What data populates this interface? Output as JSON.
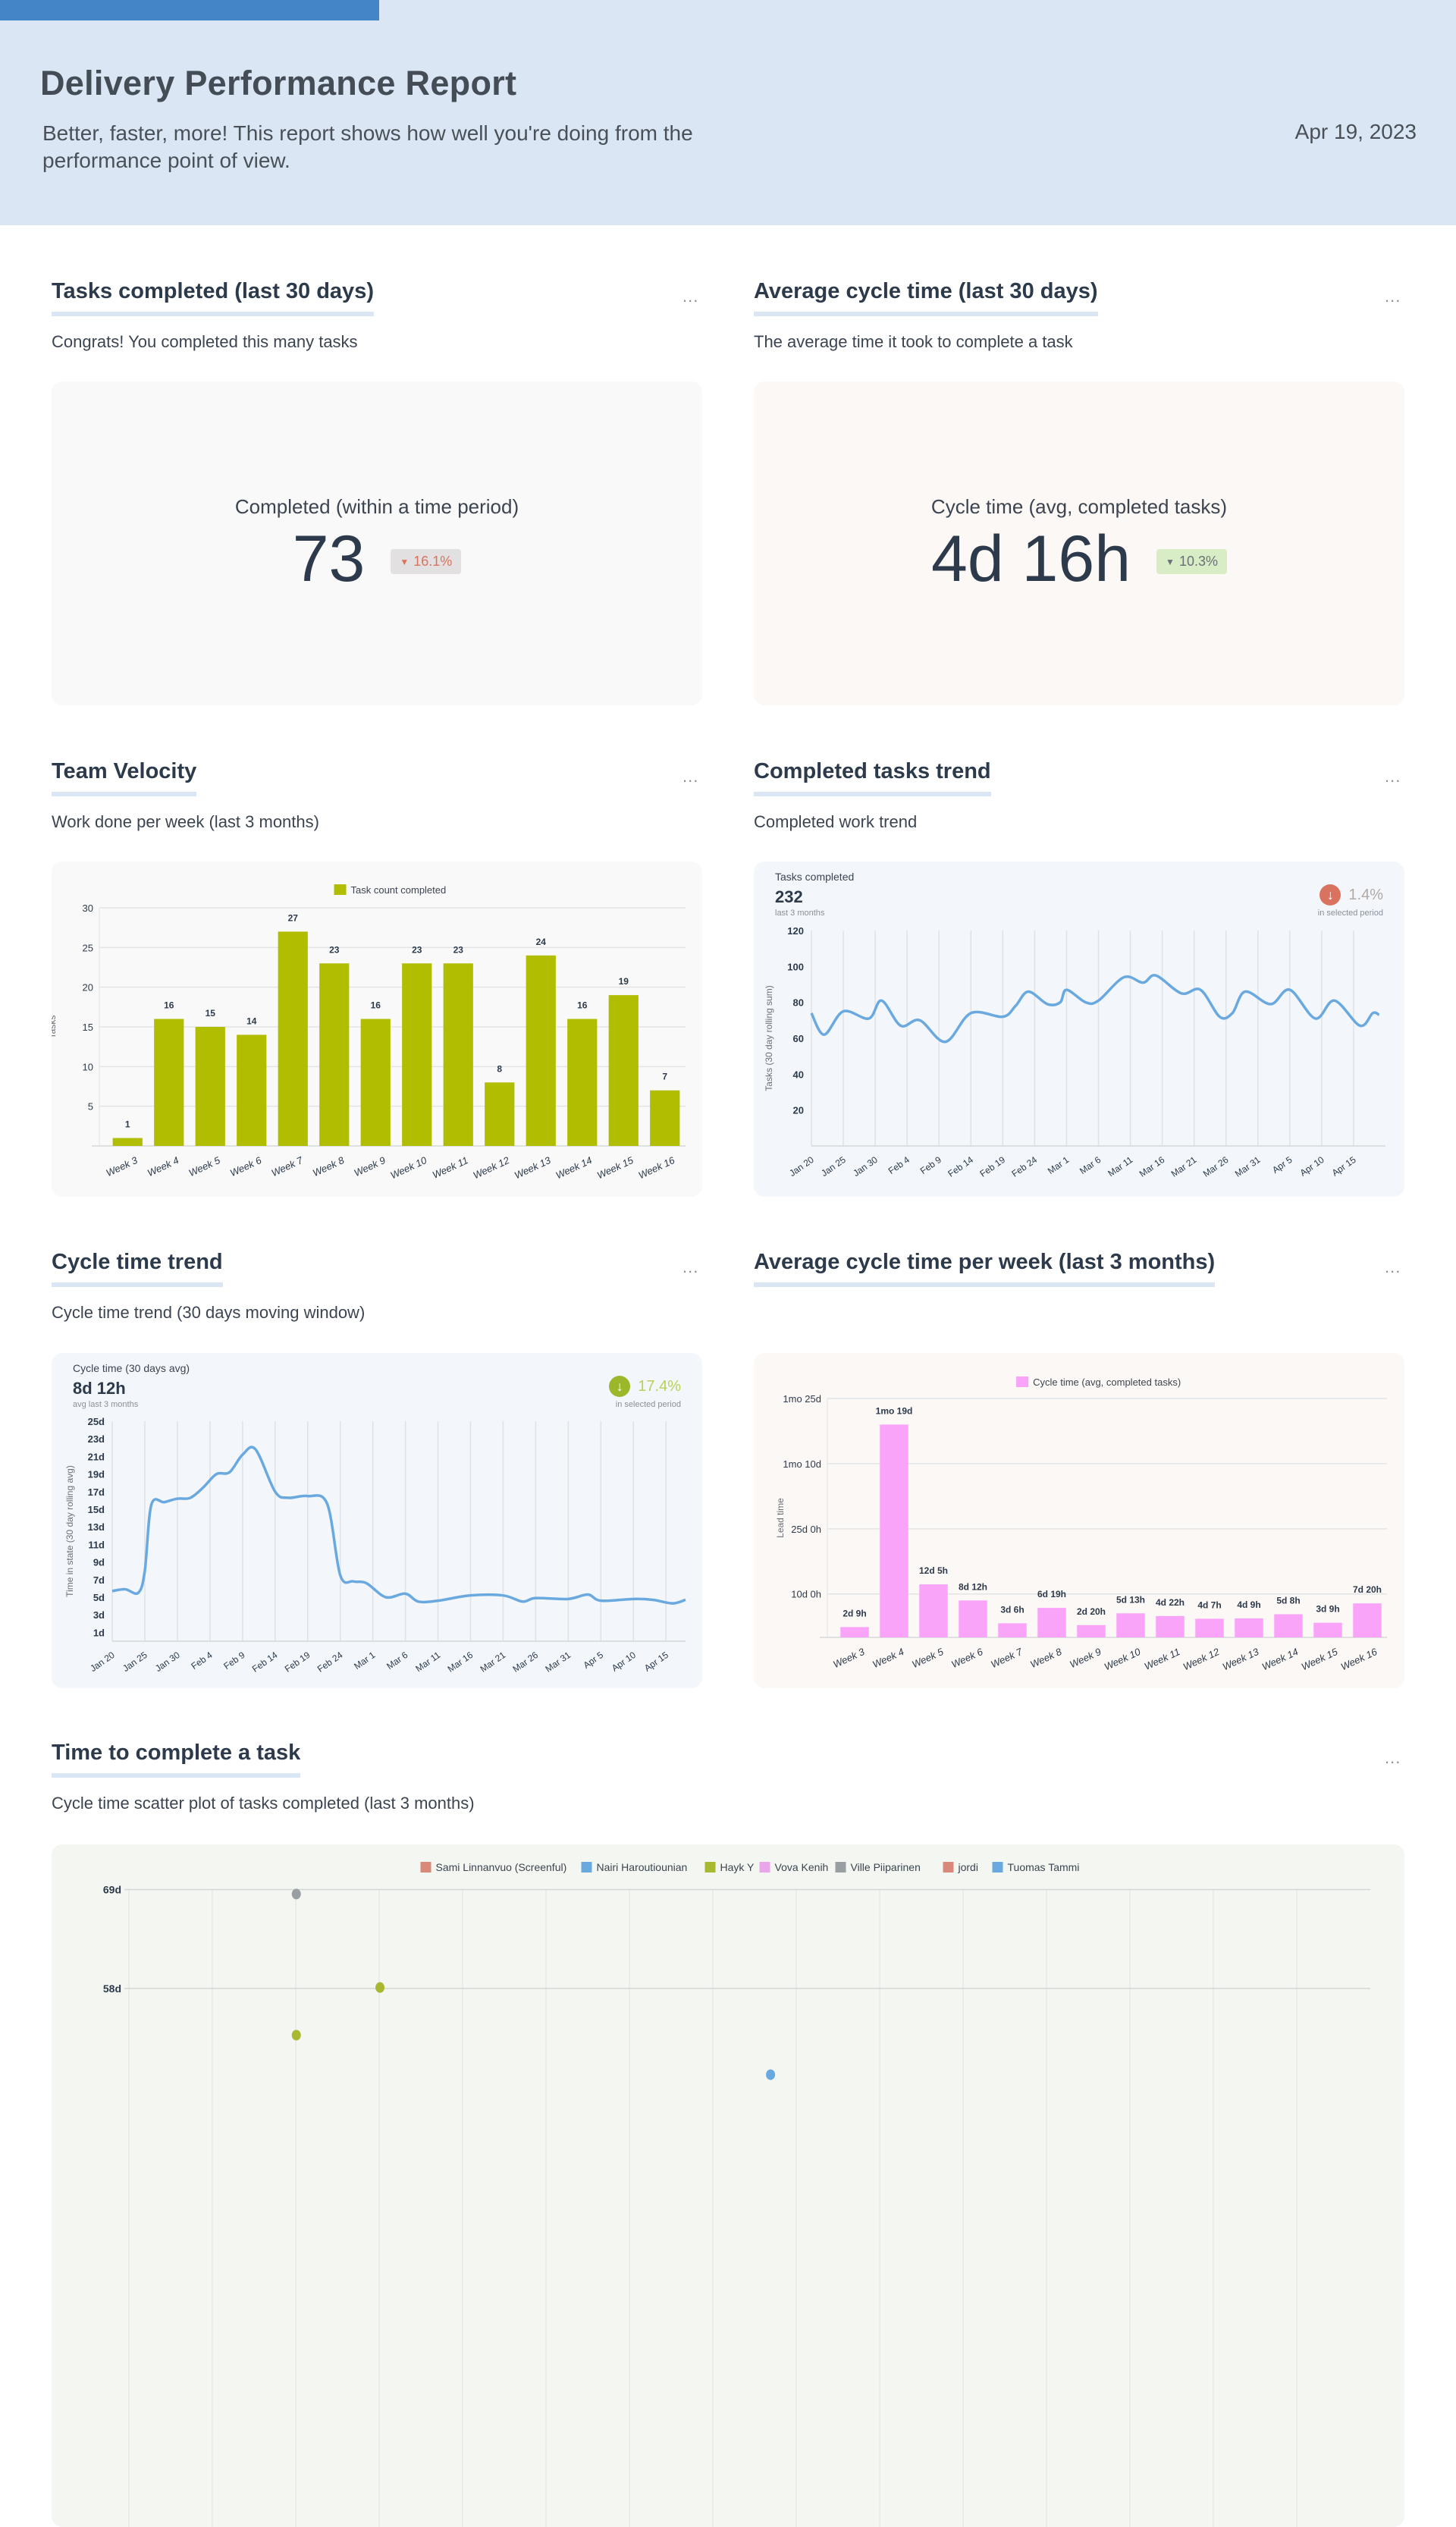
{
  "header": {
    "title": "Delivery Performance Report",
    "subtitle": "Better, faster, more! This report shows how well you're doing from the performance point of view.",
    "date": "Apr 19, 2023"
  },
  "menu_label": "...",
  "sections": [
    {
      "title": "Tasks completed (last 30 days)",
      "subtitle": "Congrats! You completed this many tasks"
    },
    {
      "title": "Average cycle time (last 30 days)",
      "subtitle": "The average time it took to complete a task"
    },
    {
      "title": "Team Velocity",
      "subtitle": "Work done per week (last 3 months)"
    },
    {
      "title": "Completed tasks trend",
      "subtitle": "Completed work trend"
    },
    {
      "title": "Cycle time trend",
      "subtitle": "Cycle time trend (30 days moving window)"
    },
    {
      "title": "Average cycle time per week (last 3 months)",
      "subtitle": ""
    },
    {
      "title": "Time to complete a task",
      "subtitle": "Cycle time scatter plot of tasks completed (last 3 months)"
    }
  ],
  "kpis": {
    "tasks": {
      "label": "Completed (within a time period)",
      "value": "73",
      "change": "16.1%",
      "direction": "down",
      "arrow": "▼",
      "color": "#d9735f",
      "badge_bg": "#e2e0e0"
    },
    "cycle": {
      "label": "Cycle time (avg, completed tasks)",
      "value": "4d 16h",
      "change": "10.3%",
      "direction": "down",
      "arrow": "▼",
      "color": "#6b7076",
      "badge_bg": "#d8ecc6"
    }
  },
  "colors": {
    "header_bg": "#dae6f3",
    "accent": "#4485c8",
    "velocity_bar": "#b0bd00",
    "cycle_bar": "#f9a3f9",
    "line": "#6aa9e0",
    "down_bad": "#d9735f",
    "down_good": "#9bb82a"
  },
  "chart_data": [
    {
      "type": "bar",
      "legend": "Task count completed",
      "legend_position": "top",
      "color": "#b0bd00",
      "categories": [
        "Week 3",
        "Week 4",
        "Week 5",
        "Week 6",
        "Week 7",
        "Week 8",
        "Week 9",
        "Week 10",
        "Week 11",
        "Week 12",
        "Week 13",
        "Week 14",
        "Week 15",
        "Week 16"
      ],
      "values": [
        1,
        16,
        15,
        14,
        27,
        23,
        16,
        23,
        23,
        8,
        24,
        16,
        19,
        7
      ],
      "value_labels": [
        "1",
        "16",
        "15",
        "14",
        "27",
        "23",
        "16",
        "23",
        "23",
        "8",
        "24",
        "16",
        "19",
        "7"
      ],
      "ylabel": "Tasks",
      "ylim": [
        0,
        30
      ],
      "yticks": [
        5,
        10,
        15,
        20,
        25,
        30
      ],
      "ytick_labels": [
        "5",
        "10",
        "15",
        "20",
        "25",
        "30"
      ],
      "grid": true
    },
    {
      "type": "line",
      "header": {
        "label": "Tasks completed",
        "value": "232",
        "note": "last 3 months",
        "change": "1.4%",
        "change_note": "in selected period",
        "direction": "down",
        "arrow_color": "#d9735f"
      },
      "color": "#6aa9e0",
      "x": [
        "Jan 20",
        "Jan 22",
        "Jan 25",
        "Jan 29",
        "Jan 31",
        "Feb 3",
        "Feb 6",
        "Feb 10",
        "Feb 14",
        "Feb 19",
        "Feb 21",
        "Feb 23",
        "Feb 26",
        "Feb 28",
        "Mar 1",
        "Mar 4",
        "Mar 6",
        "Mar 10",
        "Mar 13",
        "Mar 15",
        "Mar 19",
        "Mar 22",
        "Mar 25",
        "Mar 27",
        "Mar 29",
        "Apr 2",
        "Apr 5",
        "Apr 9",
        "Apr 12",
        "Apr 16",
        "Apr 18",
        "Apr 19"
      ],
      "y": [
        74,
        62,
        75,
        71,
        81,
        67,
        70,
        58,
        74,
        72,
        78,
        86,
        79,
        80,
        87,
        80,
        81,
        94,
        91,
        95,
        85,
        87,
        72,
        74,
        86,
        79,
        87,
        71,
        81,
        67,
        74,
        73
      ],
      "xlim": [
        "Jan 20",
        "Apr 20"
      ],
      "xticks": [
        "Jan 20",
        "Jan 25",
        "Jan 30",
        "Feb 4",
        "Feb 9",
        "Feb 14",
        "Feb 19",
        "Feb 24",
        "Mar 1",
        "Mar 6",
        "Mar 11",
        "Mar 16",
        "Mar 21",
        "Mar 26",
        "Mar 31",
        "Apr 5",
        "Apr 10",
        "Apr 15"
      ],
      "ylabel": "Tasks (30 day rolling sum)",
      "ylim": [
        0,
        120
      ],
      "yticks": [
        20,
        40,
        60,
        80,
        100,
        120
      ],
      "ytick_labels": [
        "20",
        "40",
        "60",
        "80",
        "100",
        "120"
      ],
      "grid": true
    },
    {
      "type": "line",
      "header": {
        "label": "Cycle time (30 days avg)",
        "value": "8d 12h",
        "note": "avg last 3 months",
        "change": "17.4%",
        "change_note": "in selected period",
        "direction": "down",
        "arrow_color": "#9bb82a"
      },
      "color": "#6aa9e0",
      "x": [
        "Jan 20",
        "Jan 22",
        "Jan 24",
        "Jan 25",
        "Jan 26",
        "Jan 28",
        "Jan 30",
        "Feb 1",
        "Feb 3",
        "Feb 5",
        "Feb 7",
        "Feb 9",
        "Feb 11",
        "Feb 14",
        "Feb 16",
        "Feb 19",
        "Feb 22",
        "Feb 24",
        "Feb 26",
        "Feb 28",
        "Mar 3",
        "Mar 6",
        "Mar 8",
        "Mar 11",
        "Mar 16",
        "Mar 21",
        "Mar 24",
        "Mar 26",
        "Mar 31",
        "Apr 3",
        "Apr 5",
        "Apr 10",
        "Apr 13",
        "Apr 16",
        "Apr 18"
      ],
      "y": [
        5.7,
        5.9,
        5.5,
        8,
        15.5,
        15.8,
        16.2,
        16.3,
        17.5,
        19,
        19.2,
        21.2,
        21.8,
        17,
        16.3,
        16.5,
        15.6,
        7.5,
        6.8,
        6.6,
        5,
        5.4,
        4.5,
        4.6,
        5.2,
        5.2,
        4.5,
        4.9,
        4.8,
        5.3,
        4.6,
        4.8,
        4.7,
        4.3,
        4.7
      ],
      "xlim": [
        "Jan 20",
        "Apr 18"
      ],
      "xticks": [
        "Jan 20",
        "Jan 25",
        "Jan 30",
        "Feb 4",
        "Feb 9",
        "Feb 14",
        "Feb 19",
        "Feb 24",
        "Mar 1",
        "Mar 6",
        "Mar 11",
        "Mar 16",
        "Mar 21",
        "Mar 26",
        "Mar 31",
        "Apr 5",
        "Apr 10",
        "Apr 15"
      ],
      "ylabel": "Time in state (30 day rolling avg)",
      "ylim": [
        0,
        25
      ],
      "yticks": [
        1,
        3,
        5,
        7,
        9,
        11,
        13,
        15,
        17,
        19,
        21,
        23,
        25
      ],
      "ytick_labels": [
        "1d",
        "3d",
        "5d",
        "7d",
        "9d",
        "11d",
        "13d",
        "15d",
        "17d",
        "19d",
        "21d",
        "23d",
        "25d"
      ],
      "unit": "days",
      "grid": true
    },
    {
      "type": "bar",
      "legend": "Cycle time (avg, completed tasks)",
      "legend_position": "top",
      "color": "#f9a3f9",
      "categories": [
        "Week 3",
        "Week 4",
        "Week 5",
        "Week 6",
        "Week 7",
        "Week 8",
        "Week 9",
        "Week 10",
        "Week 11",
        "Week 12",
        "Week 13",
        "Week 14",
        "Week 15",
        "Week 16"
      ],
      "values": [
        2.375,
        49,
        12.21,
        8.5,
        3.25,
        6.79,
        2.83,
        5.54,
        4.92,
        4.29,
        4.375,
        5.33,
        3.375,
        7.83
      ],
      "value_labels": [
        "2d 9h",
        "1mo 19d",
        "12d 5h",
        "8d 12h",
        "3d 6h",
        "6d 19h",
        "2d 20h",
        "5d 13h",
        "4d 22h",
        "4d 7h",
        "4d 9h",
        "5d 8h",
        "3d 9h",
        "7d 20h"
      ],
      "unit": "days",
      "ylabel": "Lead time",
      "ylim": [
        0,
        55
      ],
      "yticks": [
        10,
        25,
        40,
        55
      ],
      "ytick_labels": [
        "10d 0h",
        "25d 0h",
        "1mo 10d",
        "1mo 25d"
      ],
      "grid": true
    },
    {
      "type": "scatter",
      "legend_position": "top",
      "legend": [
        {
          "name": "Sami Linnanvuo (Screenful)",
          "color": "#d9897a"
        },
        {
          "name": "Nairi Haroutiounian",
          "color": "#6aa9e0"
        },
        {
          "name": "Hayk Y",
          "color": "#a8b830"
        },
        {
          "name": "Vova Kenih",
          "color": "#e9a6e9"
        },
        {
          "name": "Ville Piiparinen",
          "color": "#999ea3"
        },
        {
          "name": "jordi",
          "color": "#d9897a"
        },
        {
          "name": "Tuomas Tammi",
          "color": "#6aa9e0"
        }
      ],
      "points": [
        {
          "series": "Ville Piiparinen",
          "x": "Feb 1",
          "y": 68.5
        },
        {
          "series": "Hayk Y",
          "x": "Feb 7",
          "y": 58.1
        },
        {
          "series": "Hayk Y",
          "x": "Feb 1",
          "y": 52.8
        },
        {
          "series": "Tuomas Tammi",
          "x": "Mar 7",
          "y": 48.4
        }
      ],
      "xlim": [
        "Jan 20",
        "Apr 19"
      ],
      "ylim": [
        0,
        69
      ],
      "yticks": [
        58,
        69
      ],
      "ytick_labels": [
        "58d",
        "69d"
      ],
      "unit": "days",
      "grid": true
    }
  ]
}
